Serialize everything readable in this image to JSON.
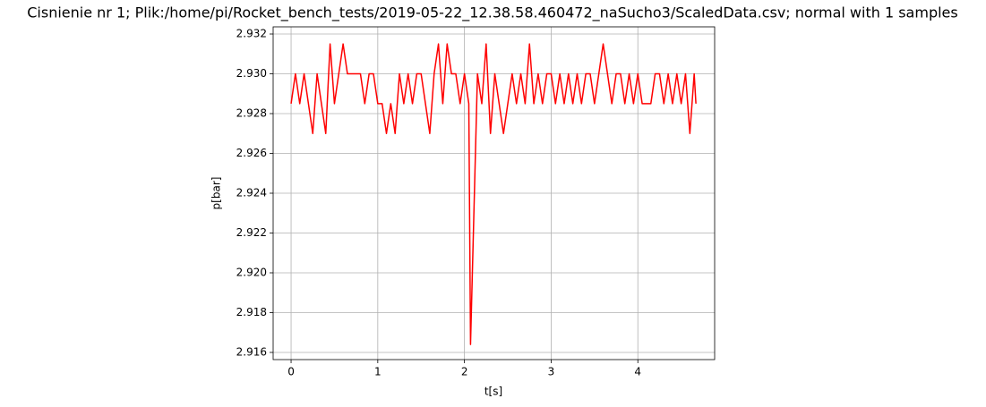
{
  "chart_data": {
    "type": "line",
    "title": "Cisnienie nr 1; Plik:/home/pi/Rocket_bench_tests/2019-05-22_12.38.58.460472_naSucho3/ScaledData.csv; normal with 1 samples",
    "xlabel": "t[s]",
    "ylabel": "p[bar]",
    "color": "#ff0000",
    "grid": true,
    "x": [
      0,
      0.05,
      0.1,
      0.15,
      0.2,
      0.25,
      0.3,
      0.35,
      0.4,
      0.45,
      0.5,
      0.55,
      0.6,
      0.65,
      0.7,
      0.75,
      0.8,
      0.85,
      0.9,
      0.95,
      1.0,
      1.05,
      1.1,
      1.15,
      1.2,
      1.25,
      1.3,
      1.35,
      1.4,
      1.45,
      1.5,
      1.55,
      1.6,
      1.65,
      1.7,
      1.75,
      1.8,
      1.85,
      1.9,
      1.95,
      2.0,
      2.05,
      2.07,
      2.15,
      2.2,
      2.25,
      2.3,
      2.35,
      2.4,
      2.45,
      2.5,
      2.55,
      2.6,
      2.65,
      2.7,
      2.75,
      2.8,
      2.85,
      2.9,
      2.95,
      3.0,
      3.05,
      3.1,
      3.15,
      3.2,
      3.25,
      3.3,
      3.35,
      3.4,
      3.45,
      3.5,
      3.55,
      3.6,
      3.65,
      3.7,
      3.75,
      3.8,
      3.85,
      3.9,
      3.95,
      4.0,
      4.05,
      4.1,
      4.15,
      4.2,
      4.25,
      4.3,
      4.35,
      4.4,
      4.45,
      4.5,
      4.55,
      4.6,
      4.65,
      4.67
    ],
    "values": [
      2.9285,
      2.93,
      2.9285,
      2.93,
      2.9285,
      2.927,
      2.93,
      2.9285,
      2.927,
      2.9315,
      2.9285,
      2.93,
      2.9315,
      2.93,
      2.93,
      2.93,
      2.93,
      2.9285,
      2.93,
      2.93,
      2.9285,
      2.9285,
      2.927,
      2.9285,
      2.927,
      2.93,
      2.9285,
      2.93,
      2.9285,
      2.93,
      2.93,
      2.9285,
      2.927,
      2.93,
      2.9315,
      2.9285,
      2.9315,
      2.93,
      2.93,
      2.9285,
      2.93,
      2.9285,
      2.9164,
      2.93,
      2.9285,
      2.9315,
      2.927,
      2.93,
      2.9285,
      2.927,
      2.9285,
      2.93,
      2.9285,
      2.93,
      2.9285,
      2.9315,
      2.9285,
      2.93,
      2.9285,
      2.93,
      2.93,
      2.9285,
      2.93,
      2.9285,
      2.93,
      2.9285,
      2.93,
      2.9285,
      2.93,
      2.93,
      2.9285,
      2.93,
      2.9315,
      2.93,
      2.9285,
      2.93,
      2.93,
      2.9285,
      2.93,
      2.9285,
      2.93,
      2.9285,
      2.9285,
      2.9285,
      2.93,
      2.93,
      2.9285,
      2.93,
      2.9285,
      2.93,
      2.9285,
      2.93,
      2.927,
      2.93,
      2.9285
    ],
    "xlim": [
      -0.207,
      4.886
    ],
    "xticks": [
      0,
      1,
      2,
      3,
      4
    ],
    "ylim": [
      2.91564,
      2.93236
    ],
    "yticks": [
      2.916,
      2.918,
      {
        "value": 2.92,
        "label": "2.920"
      },
      2.922,
      2.924,
      2.926,
      2.928,
      {
        "value": 2.93,
        "label": "2.930"
      },
      2.932
    ]
  }
}
